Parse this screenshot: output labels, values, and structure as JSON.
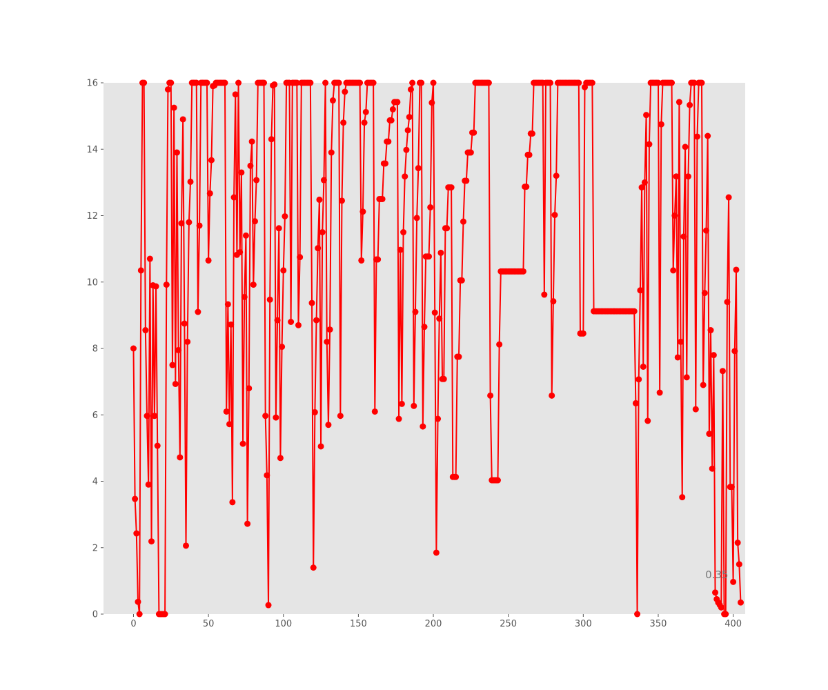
{
  "chart_data": {
    "type": "line",
    "title": "",
    "xlabel": "",
    "ylabel": "",
    "xlim": [
      -20,
      408
    ],
    "ylim": [
      0,
      16
    ],
    "x_ticks": [
      0,
      50,
      100,
      150,
      200,
      250,
      300,
      350,
      400
    ],
    "y_ticks": [
      0,
      2,
      4,
      6,
      8,
      10,
      12,
      14,
      16
    ],
    "grid": false,
    "background": "#e5e5e5",
    "series": [
      {
        "color": "#ff0000",
        "marker": "circle",
        "values": [
          8.0,
          3.47,
          2.43,
          0.37,
          0,
          10.35,
          16,
          16,
          8.55,
          5.97,
          3.9,
          10.7,
          2.19,
          9.9,
          5.97,
          9.87,
          5.07,
          0,
          0,
          0,
          0,
          0,
          9.92,
          15.8,
          16,
          16,
          7.5,
          15.25,
          6.93,
          13.9,
          7.95,
          4.72,
          11.77,
          14.9,
          8.75,
          2.06,
          8.2,
          11.8,
          13.02,
          16,
          16,
          16,
          16,
          9.1,
          11.7,
          16,
          16,
          16,
          16,
          16,
          10.65,
          12.67,
          13.67,
          15.9,
          15.92,
          16,
          16,
          16,
          16,
          16,
          16,
          16,
          6.1,
          9.33,
          5.72,
          8.72,
          3.37,
          12.55,
          15.65,
          10.82,
          16,
          10.9,
          13.3,
          5.13,
          9.55,
          11.4,
          2.72,
          6.8,
          13.5,
          14.23,
          9.92,
          11.83,
          13.07,
          16,
          16,
          16,
          16,
          16,
          5.97,
          4.18,
          0.27,
          9.47,
          14.3,
          15.92,
          15.95,
          5.92,
          8.85,
          11.62,
          4.7,
          8.05,
          10.35,
          11.98,
          16,
          16,
          16,
          8.8,
          16,
          16,
          16,
          16,
          8.7,
          10.75,
          16,
          16,
          16,
          16,
          16,
          16,
          16,
          9.37,
          1.4,
          6.08,
          8.85,
          11.02,
          12.48,
          5.05,
          11.5,
          13.07,
          16,
          8.2,
          5.7,
          8.57,
          13.9,
          15.47,
          16,
          16,
          16,
          16,
          5.97,
          12.45,
          14.8,
          15.73,
          16,
          16,
          16,
          16,
          16,
          16,
          16,
          16,
          16,
          16,
          10.65,
          12.12,
          14.8,
          15.12,
          16,
          16,
          16,
          16,
          16,
          6.1,
          10.68,
          10.68,
          12.5,
          12.5,
          12.5,
          13.57,
          13.57,
          14.23,
          14.23,
          14.87,
          14.87,
          15.2,
          15.42,
          15.42,
          15.42,
          5.88,
          10.97,
          6.33,
          11.5,
          13.18,
          13.98,
          14.57,
          14.97,
          15.8,
          16,
          6.27,
          9.1,
          11.93,
          13.43,
          16,
          16,
          5.65,
          8.65,
          10.77,
          10.77,
          10.77,
          12.25,
          15.4,
          16,
          9.08,
          1.85,
          5.88,
          8.9,
          10.88,
          7.08,
          7.08,
          11.62,
          11.62,
          12.85,
          12.85,
          12.85,
          4.13,
          4.13,
          4.13,
          7.75,
          7.75,
          10.05,
          10.05,
          11.82,
          13.05,
          13.05,
          13.9,
          13.9,
          13.9,
          14.5,
          14.5,
          16,
          16,
          16,
          16,
          16,
          16,
          16,
          16,
          16,
          16,
          6.58,
          4.03,
          4.03,
          4.03,
          4.03,
          4.03,
          8.12,
          10.32,
          10.32,
          10.32,
          10.32,
          10.32,
          10.32,
          10.32,
          10.32,
          10.32,
          10.32,
          10.32,
          10.32,
          10.32,
          10.32,
          10.32,
          10.32,
          12.87,
          12.87,
          13.83,
          13.83,
          14.47,
          14.47,
          16,
          16,
          16,
          16,
          16,
          16,
          16,
          9.62,
          16,
          16,
          16,
          16,
          6.58,
          9.42,
          12.02,
          13.2,
          16,
          16,
          16,
          16,
          16,
          16,
          16,
          16,
          16,
          16,
          16,
          16,
          16,
          16,
          16,
          8.45,
          8.45,
          8.45,
          15.87,
          16,
          16,
          16,
          16,
          16,
          9.12,
          9.12,
          9.12,
          9.12,
          9.12,
          9.12,
          9.12,
          9.12,
          9.12,
          9.12,
          9.12,
          9.12,
          9.12,
          9.12,
          9.12,
          9.12,
          9.12,
          9.12,
          9.12,
          9.12,
          9.12,
          9.12,
          9.12,
          9.12,
          9.12,
          9.12,
          9.12,
          9.12,
          6.35,
          0,
          7.07,
          9.75,
          12.85,
          7.45,
          13.0,
          15.03,
          5.82,
          14.15,
          16,
          16,
          16,
          16,
          16,
          16,
          6.67,
          14.75,
          16,
          16,
          16,
          16,
          16,
          16,
          16,
          10.35,
          12.0,
          13.18,
          7.73,
          15.42,
          8.2,
          3.52,
          11.37,
          14.07,
          7.13,
          13.18,
          15.33,
          16,
          16,
          16,
          6.17,
          14.38,
          16,
          16,
          16,
          6.9,
          9.67,
          11.55,
          14.4,
          5.43,
          8.55,
          4.38,
          7.8,
          0.65,
          0.45,
          0.35,
          0.28,
          0.2,
          7.32,
          0,
          0,
          9.4,
          12.55,
          3.83,
          3.83,
          0.97,
          7.92,
          10.37,
          2.15,
          1.5,
          0.35
        ]
      }
    ],
    "annotations": [
      {
        "text": "0.35",
        "x": 390,
        "y": 0.35
      }
    ]
  }
}
